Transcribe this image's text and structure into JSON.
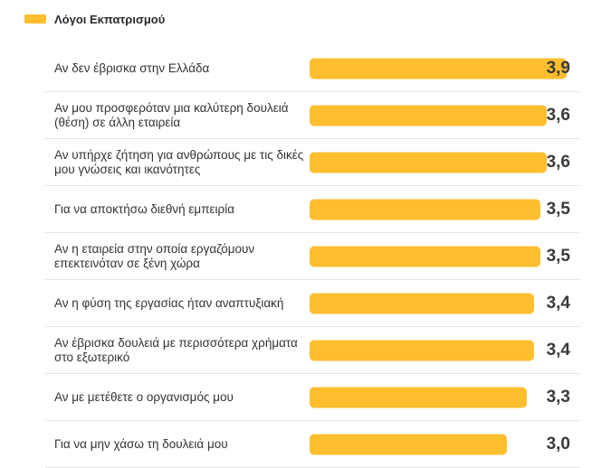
{
  "colors": {
    "bar": "#FFBE2E"
  },
  "chart_data": {
    "type": "bar",
    "orientation": "horizontal",
    "title": "",
    "xlabel": "",
    "ylabel": "",
    "xlim": [
      0,
      3.9
    ],
    "grid": false,
    "legend_position": "top-left",
    "series": [
      {
        "name": "Λόγοι Εκπατρισμού",
        "values": [
          3.9,
          3.6,
          3.6,
          3.5,
          3.5,
          3.4,
          3.4,
          3.3,
          3.0
        ],
        "value_labels": [
          "3,9",
          "3,6",
          "3,6",
          "3,5",
          "3,5",
          "3,4",
          "3,4",
          "3,3",
          "3,0"
        ]
      }
    ],
    "categories": [
      "Αν δεν έβρισκα στην Ελλάδα",
      "Αν μου προσφερόταν μια καλύτερη δουλειά (θέση) σε άλλη εταιρεία",
      "Αν υπήρχε ζήτηση για ανθρώπους με τις δικές μου γνώσεις και ικανότητες",
      "Για να αποκτήσω διεθνή εμπειρία",
      "Αν η εταιρεία στην οποία εργαζόμουν επεκτεινόταν σε ξένη χώρα",
      "Αν η φύση της εργασίας ήταν αναπτυξιακή",
      "Αν έβρισκα δουλειά με περισσότερα χρήματα στο εξωτερικό",
      "Αν με μετέθετε ο οργανισμός μου",
      "Για να μην χάσω τη δουλειά μου"
    ]
  }
}
